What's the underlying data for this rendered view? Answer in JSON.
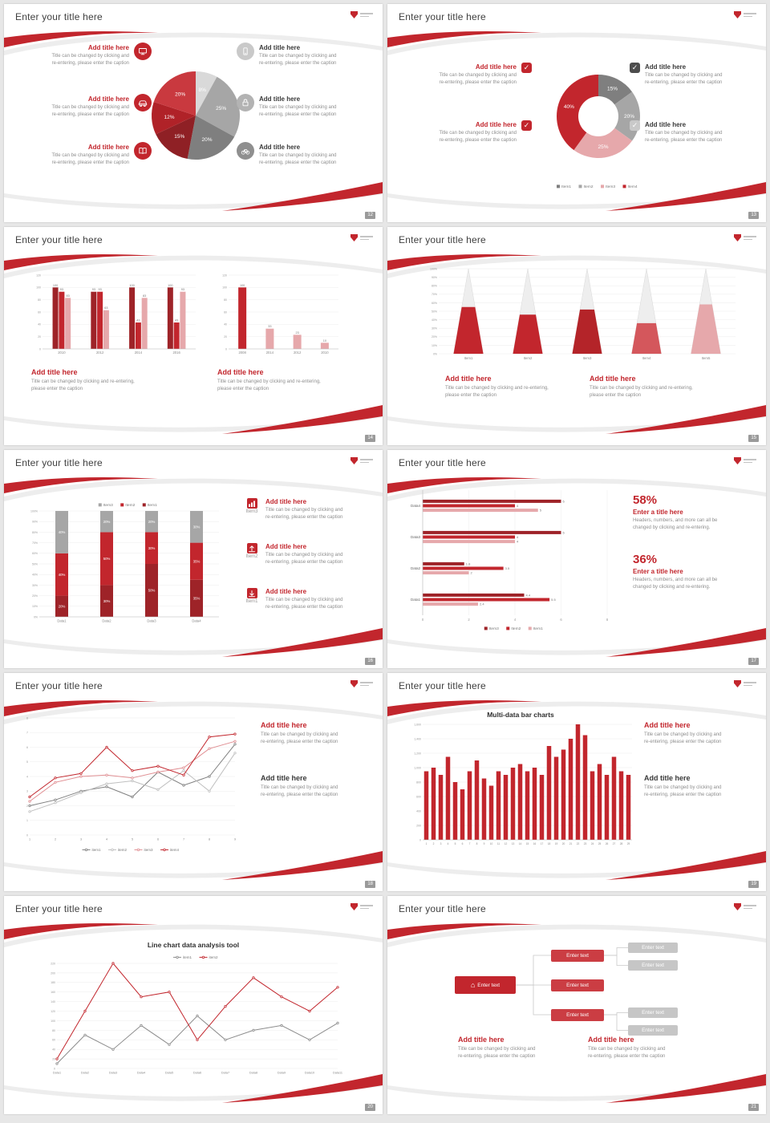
{
  "page": {
    "background": "#e7e7e7",
    "accent": "#c2262d"
  },
  "common": {
    "slide_title": "Enter your title here",
    "add_title": "Add title here",
    "cap1": "Title can be changed by clicking and",
    "cap2": "re-entering, please enter the caption",
    "cap1b": "Title can be changed by clicking and re-entering,",
    "cap2b": "please enter the caption",
    "enter_title": "Enter a title here",
    "stat_cap1": "Headers, numbers, and more can all be",
    "stat_cap2": "changed by clicking and re-entering."
  },
  "slides": [
    {
      "page": "12",
      "chart": {
        "type": "pie",
        "r": 55,
        "values": [
          8,
          25,
          20,
          15,
          12,
          20
        ],
        "labels": [
          "8%",
          "25%",
          "20%",
          "15%",
          "12%",
          "20%"
        ],
        "colors": [
          "#d9d9d9",
          "#a6a6a6",
          "#7f7f7f",
          "#8f2025",
          "#b02228",
          "#c9393f"
        ]
      }
    },
    {
      "page": "13",
      "chart": {
        "type": "pie",
        "r": 52,
        "inner": 25,
        "values": [
          15,
          20,
          25,
          40
        ],
        "labels": [
          "15%",
          "20%",
          "25%",
          "40%"
        ],
        "colors": [
          "#7f7f7f",
          "#a6a6a6",
          "#e6a8ab",
          "#c2262d"
        ],
        "legend": [
          {
            "label": "Item1",
            "color": "#7f7f7f"
          },
          {
            "label": "Item2",
            "color": "#a6a6a6"
          },
          {
            "label": "Item3",
            "color": "#e6a8ab"
          },
          {
            "label": "Item4",
            "color": "#c2262d"
          }
        ]
      }
    },
    {
      "page": "14",
      "chart_left": {
        "type": "bars",
        "categories": [
          "2010",
          "2012",
          "2014",
          "2016"
        ],
        "ymax": 120,
        "ystep": 20,
        "valueLabels": true,
        "series": [
          {
            "name": "Series1",
            "color": "#9e2328",
            "values": [
              100,
              93,
              100,
              100
            ]
          },
          {
            "name": "Series2",
            "color": "#c2262d",
            "values": [
              93,
              93,
              43,
              43
            ]
          },
          {
            "name": "Series3",
            "color": "#e6a8ab",
            "values": [
              83,
              63,
              83,
              93
            ]
          }
        ]
      },
      "chart_right": {
        "type": "bars",
        "categories": [
          "2008",
          "2014",
          "2012",
          "2010"
        ],
        "ymax": 120,
        "ystep": 20,
        "valueLabels": true,
        "bw": 10,
        "series": [
          {
            "name": "Series1",
            "color": "#c2262d",
            "barColors": [
              "#c2262d",
              "#e6a8ab",
              "#e6a8ab",
              "#e6a8ab"
            ],
            "values": [
              100,
              33,
              23,
              10
            ]
          }
        ]
      }
    },
    {
      "page": "15",
      "chart": {
        "type": "cones",
        "ymax": 100,
        "ystep": 10,
        "yfmt": "pct",
        "items": [
          {
            "label": "Item1",
            "pct": 55,
            "color": "#c2262d"
          },
          {
            "label": "Item2",
            "pct": 46,
            "color": "#c2262d"
          },
          {
            "label": "Item3",
            "pct": 52,
            "color": "#b42429"
          },
          {
            "label": "Item4",
            "pct": 36,
            "color": "#d4575c"
          },
          {
            "label": "Item5",
            "pct": 58,
            "color": "#e6a8ab"
          }
        ]
      }
    },
    {
      "page": "16",
      "chart": {
        "type": "stacked",
        "categories": [
          "Data1",
          "Data2",
          "Data3",
          "Data4"
        ],
        "ymax": 100,
        "ystep": 10,
        "yfmt": "pct",
        "series": [
          {
            "name": "Item1",
            "color": "#9e2328",
            "values": [
              20,
              30,
              50,
              35
            ]
          },
          {
            "name": "Item2",
            "color": "#c2262d",
            "values": [
              40,
              50,
              30,
              35
            ]
          },
          {
            "name": "Item3",
            "color": "#a6a6a6",
            "values": [
              40,
              20,
              20,
              30
            ]
          }
        ],
        "legend": [
          {
            "label": "Item3",
            "color": "#a6a6a6"
          },
          {
            "label": "Item2",
            "color": "#c2262d"
          },
          {
            "label": "Item1",
            "color": "#9e2328"
          }
        ]
      },
      "items": [
        {
          "label": "Item3"
        },
        {
          "label": "Item2"
        },
        {
          "label": "Item1"
        }
      ]
    },
    {
      "page": "17",
      "chart": {
        "type": "hbars",
        "xmax": 8,
        "xstep": 2,
        "groups": [
          {
            "label": "Data4",
            "values": [
              6,
              4,
              5
            ]
          },
          {
            "label": "Data3",
            "values": [
              6,
              4,
              4
            ]
          },
          {
            "label": "Data2",
            "values": [
              1.8,
              3.5,
              2
            ]
          },
          {
            "label": "Data1",
            "values": [
              4.4,
              5.5,
              2.4
            ]
          }
        ],
        "seriesColors": [
          "#9e2328",
          "#c2262d",
          "#e6a8ab"
        ],
        "legend": [
          {
            "label": "Item3",
            "color": "#9e2328"
          },
          {
            "label": "Item2",
            "color": "#c2262d"
          },
          {
            "label": "Item1",
            "color": "#e6a8ab"
          }
        ]
      },
      "stats": [
        {
          "pct": "58%"
        },
        {
          "pct": "36%"
        }
      ]
    },
    {
      "page": "18",
      "chart": {
        "type": "lines",
        "legendPos": "bottom",
        "ymax": 8,
        "ystep": 1,
        "x": [
          "1",
          "2",
          "3",
          "4",
          "5",
          "6",
          "7",
          "8",
          "9"
        ],
        "series": [
          {
            "name": "item1",
            "color": "#7f7f7f",
            "values": [
              2,
              2.4,
              3,
              3.3,
              2.6,
              4.3,
              3.4,
              4,
              6.2
            ]
          },
          {
            "name": "item2",
            "color": "#bfbfbf",
            "values": [
              1.6,
              2.2,
              2.9,
              3.5,
              3.7,
              3.1,
              4.4,
              3,
              5.6
            ]
          },
          {
            "name": "item3",
            "color": "#e08e92",
            "values": [
              2.3,
              3.6,
              4,
              4.1,
              3.9,
              4.3,
              4.6,
              5.9,
              6.4
            ]
          },
          {
            "name": "item4",
            "color": "#c2262d",
            "values": [
              2.6,
              3.9,
              4.2,
              6,
              4.4,
              4.7,
              4.1,
              6.7,
              6.9
            ]
          }
        ]
      }
    },
    {
      "page": "19",
      "chart_title": "Multi-data bar charts",
      "chart": {
        "type": "bars",
        "ymax": 1600,
        "ystep": 200,
        "yfmt": "comma",
        "xfs": 3.2,
        "bw": 5.5,
        "categories": [
          "1",
          "2",
          "3",
          "4",
          "5",
          "6",
          "7",
          "8",
          "9",
          "10",
          "11",
          "12",
          "13",
          "14",
          "15",
          "16",
          "17",
          "18",
          "19",
          "20",
          "21",
          "22",
          "23",
          "24",
          "25",
          "26",
          "27",
          "28",
          "29"
        ],
        "series": [
          {
            "name": "data",
            "color": "#c2262d",
            "values": [
              950,
              1000,
              900,
              1150,
              800,
              700,
              950,
              1100,
              850,
              750,
              950,
              900,
              1000,
              1050,
              950,
              1000,
              900,
              1300,
              1150,
              1250,
              1400,
              1600,
              1450,
              950,
              1050,
              900,
              1150,
              950,
              900
            ]
          }
        ]
      }
    },
    {
      "page": "20",
      "chart_title": "Line chart data analysis tool",
      "chart": {
        "type": "lines",
        "legendPos": "top",
        "ymax": 220,
        "ystep": 20,
        "x": [
          "Data1",
          "Data2",
          "Data3",
          "Data4",
          "Data5",
          "Data6",
          "Data7",
          "Data8",
          "Data9",
          "Data10",
          "Data11"
        ],
        "series": [
          {
            "name": "item1",
            "color": "#8c8c8c",
            "values": [
              10,
              70,
              40,
              90,
              50,
              110,
              60,
              80,
              90,
              60,
              95
            ]
          },
          {
            "name": "item2",
            "color": "#c2262d",
            "values": [
              20,
              120,
              220,
              150,
              160,
              60,
              130,
              190,
              150,
              120,
              170
            ]
          }
        ]
      }
    },
    {
      "page": "21",
      "diagram": {
        "root": "Enter text",
        "mid": [
          "Enter text",
          "Enter text",
          "Enter text"
        ],
        "leaves": [
          "Enter text",
          "Enter text",
          "Enter text",
          "Enter text"
        ]
      }
    }
  ]
}
